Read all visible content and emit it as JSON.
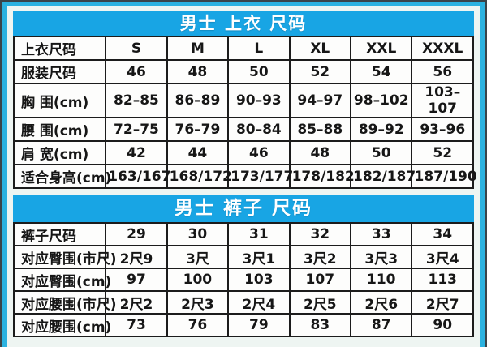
{
  "colors": {
    "frame_cyan": "#2bb2e0",
    "band_blue": "#18a5e4",
    "panel_margin": "#eef5f2",
    "table_background": "#fdfdfc",
    "grid_border": "#1c1c1c",
    "title_text": "#ffffff",
    "cell_text": "#161616"
  },
  "tables": [
    {
      "title": "男士 上衣 尺码",
      "rows": [
        {
          "label": "上衣尺码",
          "values": [
            "S",
            "M",
            "L",
            "XL",
            "XXL",
            "XXXL"
          ]
        },
        {
          "label": "服装尺码",
          "values": [
            "46",
            "48",
            "50",
            "52",
            "54",
            "56"
          ]
        },
        {
          "label": "胸 围(cm)",
          "values": [
            "82–85",
            "86–89",
            "90–93",
            "94–97",
            "98–102",
            "103–107"
          ]
        },
        {
          "label": "腰 围(cm)",
          "values": [
            "72–75",
            "76–79",
            "80–84",
            "85–88",
            "89–92",
            "93–96"
          ]
        },
        {
          "label": "肩 宽(cm)",
          "values": [
            "42",
            "44",
            "46",
            "48",
            "50",
            "52"
          ]
        },
        {
          "label": "适合身高(cm)",
          "values": [
            "163/167",
            "168/172",
            "173/177",
            "178/182",
            "182/187",
            "187/190"
          ]
        }
      ]
    },
    {
      "title": "男士 裤子 尺码",
      "rows": [
        {
          "label": "裤子尺码",
          "values": [
            "29",
            "30",
            "31",
            "32",
            "33",
            "34"
          ]
        },
        {
          "label": "对应臀围(市尺)",
          "values": [
            "2尺9",
            "3尺",
            "3尺1",
            "3尺2",
            "3尺3",
            "3尺4"
          ]
        },
        {
          "label": "对应臀围(cm)",
          "values": [
            "97",
            "100",
            "103",
            "107",
            "110",
            "113"
          ]
        },
        {
          "label": "对应腰围(市尺)",
          "values": [
            "2尺2",
            "2尺3",
            "2尺4",
            "2尺5",
            "2尺6",
            "2尺7"
          ]
        },
        {
          "label": "对应腰围(cm)",
          "values": [
            "73",
            "76",
            "79",
            "83",
            "87",
            "90"
          ]
        }
      ]
    }
  ]
}
